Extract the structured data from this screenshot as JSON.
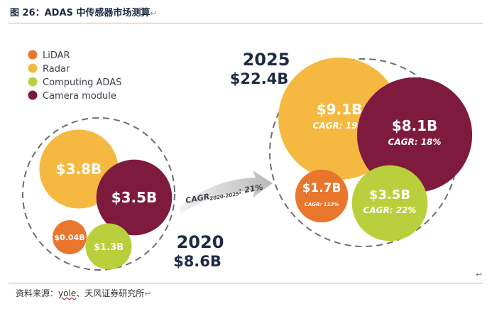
{
  "figure": {
    "title": "图 26：ADAS 中传感器市场测算",
    "title_return_mark": "↩",
    "source_prefix": "资料来源：",
    "source_yole": "yole",
    "source_suffix": "、天风证券研究所",
    "source_return_mark": "↩",
    "trailing_return_mark": "↩"
  },
  "colors": {
    "lidar": "#e8762c",
    "radar": "#f5b841",
    "computing": "#b9cf3c",
    "camera": "#7e1a3d",
    "text_dark": "#1f2b44",
    "rule": "#e8a87c"
  },
  "chart_data": {
    "type": "bubble",
    "legend": [
      {
        "key": "lidar",
        "label": "LiDAR"
      },
      {
        "key": "radar",
        "label": "Radar"
      },
      {
        "key": "computing",
        "label": "Computing ADAS"
      },
      {
        "key": "camera",
        "label": "Camera module"
      }
    ],
    "years": [
      {
        "year": "2020",
        "total": "$8.6B",
        "segments": [
          {
            "key": "radar",
            "value": 3.8,
            "label": "$3.8B"
          },
          {
            "key": "camera",
            "value": 3.5,
            "label": "$3.5B"
          },
          {
            "key": "lidar",
            "value": 0.04,
            "label": "$0.04B"
          },
          {
            "key": "computing",
            "value": 1.3,
            "label": "$1.3B"
          }
        ]
      },
      {
        "year": "2025",
        "total": "$22.4B",
        "segments": [
          {
            "key": "radar",
            "value": 9.1,
            "label": "$9.1B",
            "cagr": "CAGR: 19%"
          },
          {
            "key": "camera",
            "value": 8.1,
            "label": "$8.1B",
            "cagr": "CAGR: 18%"
          },
          {
            "key": "lidar",
            "value": 1.7,
            "label": "$1.7B",
            "cagr": "CAGR: 113%"
          },
          {
            "key": "computing",
            "value": 3.5,
            "label": "$3.5B",
            "cagr": "CAGR: 22%"
          }
        ]
      }
    ],
    "arrow": {
      "label_main": "CAGR",
      "label_sub": "2020-2025",
      "label_value": ": 21%"
    }
  }
}
